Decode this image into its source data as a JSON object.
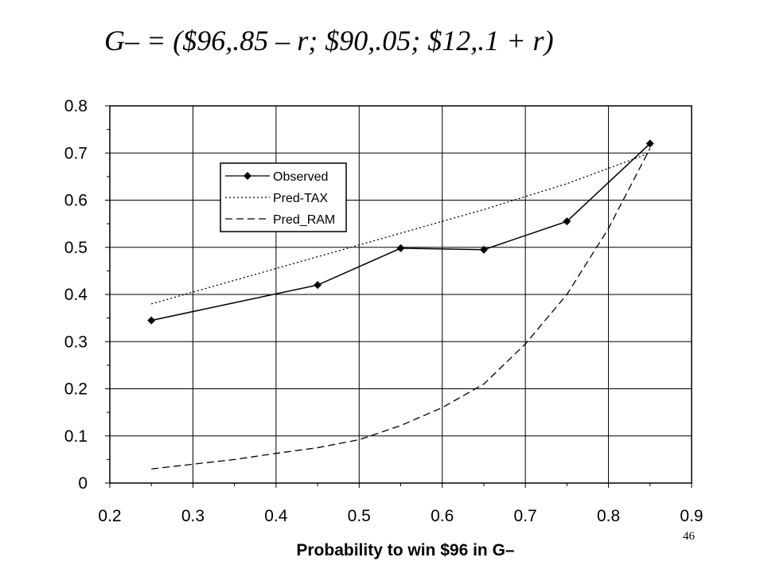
{
  "slide": {
    "title": "G– = ($96,.85 – r; $90,.05; $12,.1 + r)",
    "page_number": "46"
  },
  "chart_data": {
    "type": "line",
    "title": "",
    "xlabel": "Probability to win $96 in G–",
    "ylabel": "",
    "xlim": [
      0.2,
      0.9
    ],
    "ylim": [
      0,
      0.8
    ],
    "x_ticks": [
      "0.2",
      "0.3",
      "0.4",
      "0.5",
      "0.6",
      "0.7",
      "0.8",
      "0.9"
    ],
    "y_ticks": [
      "0",
      "0.1",
      "0.2",
      "0.3",
      "0.4",
      "0.5",
      "0.6",
      "0.7",
      "0.8"
    ],
    "grid": true,
    "legend_position": "top-left",
    "series": [
      {
        "name": "Observed",
        "style": "solid-diamond",
        "color": "#000000",
        "x": [
          0.25,
          0.45,
          0.55,
          0.65,
          0.75,
          0.85
        ],
        "y": [
          0.345,
          0.42,
          0.498,
          0.495,
          0.555,
          0.72
        ]
      },
      {
        "name": "Pred-TAX",
        "style": "dotted",
        "color": "#000000",
        "x": [
          0.25,
          0.35,
          0.45,
          0.55,
          0.65,
          0.75,
          0.85
        ],
        "y": [
          0.38,
          0.43,
          0.48,
          0.53,
          0.58,
          0.635,
          0.7
        ]
      },
      {
        "name": "Pred_RAM",
        "style": "dashed",
        "color": "#000000",
        "x": [
          0.25,
          0.3,
          0.35,
          0.4,
          0.45,
          0.5,
          0.55,
          0.6,
          0.65,
          0.7,
          0.75,
          0.8,
          0.85
        ],
        "y": [
          0.03,
          0.04,
          0.05,
          0.063,
          0.075,
          0.092,
          0.122,
          0.16,
          0.21,
          0.295,
          0.4,
          0.54,
          0.71
        ]
      }
    ]
  }
}
